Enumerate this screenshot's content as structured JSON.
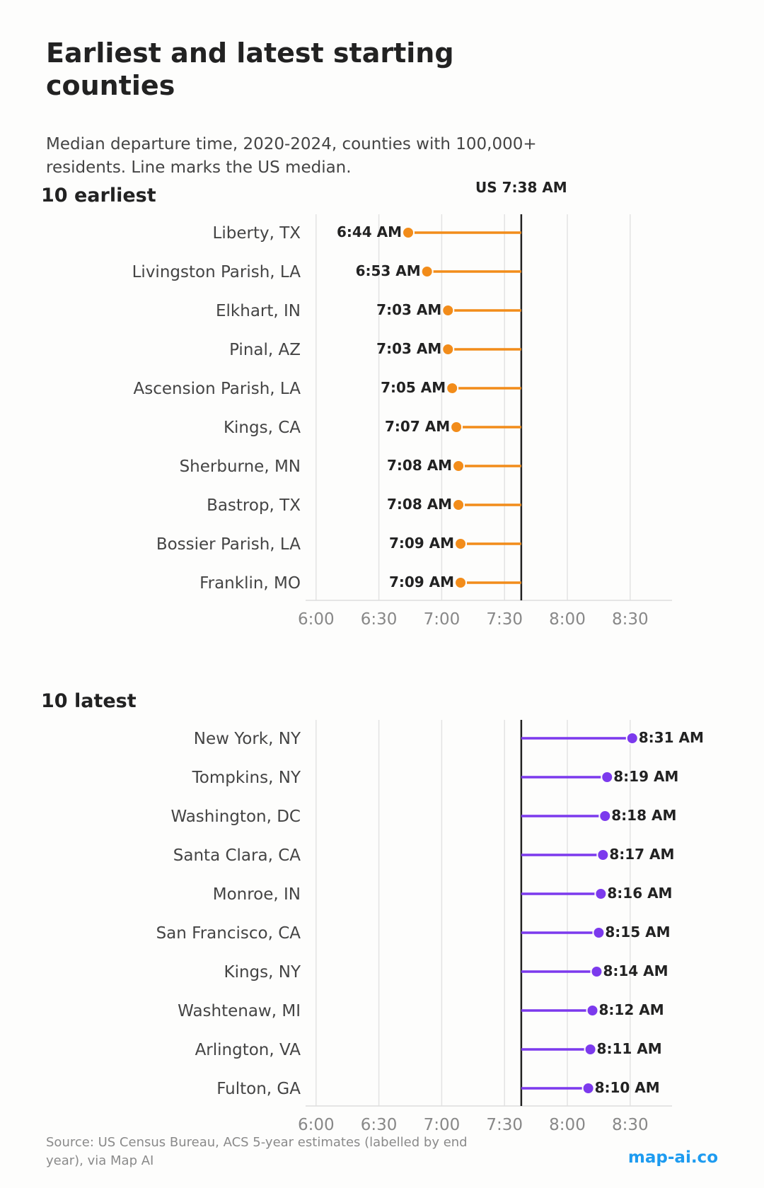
{
  "title": "Earliest and latest starting counties",
  "subtitle": "Median departure time, 2020-2024, counties with 100,000+ residents. Line marks the US median.",
  "source": "Source: US Census Bureau, ACS 5-year estimates (labelled by end year), via Map AI",
  "brand": "map-ai.co",
  "colors": {
    "earliest": "#f28c1a",
    "latest": "#7c3aed",
    "reference": "#222222",
    "brand": "#1d9bf0"
  },
  "chart_data": [
    {
      "type": "lollipop",
      "title": "10 earliest",
      "reference": {
        "value": "7:38",
        "label": "US 7:38 AM"
      },
      "xticks": [
        "6:00",
        "6:30",
        "7:00",
        "7:30",
        "8:00",
        "8:30"
      ],
      "xlim": [
        "5:55",
        "8:50"
      ],
      "grid": true,
      "categories": [
        "Liberty, TX",
        "Livingston Parish, LA",
        "Elkhart, IN",
        "Pinal, AZ",
        "Ascension Parish, LA",
        "Kings, CA",
        "Sherburne, MN",
        "Bastrop, TX",
        "Bossier Parish, LA",
        "Franklin, MO"
      ],
      "values": [
        "6:44",
        "6:53",
        "7:03",
        "7:03",
        "7:05",
        "7:07",
        "7:08",
        "7:08",
        "7:09",
        "7:09"
      ],
      "labels": [
        "6:44 AM",
        "6:53 AM",
        "7:03 AM",
        "7:03 AM",
        "7:05 AM",
        "7:07 AM",
        "7:08 AM",
        "7:08 AM",
        "7:09 AM",
        "7:09 AM"
      ],
      "color": "#f28c1a"
    },
    {
      "type": "lollipop",
      "title": "10 latest",
      "reference": {
        "value": "7:38"
      },
      "xticks": [
        "6:00",
        "6:30",
        "7:00",
        "7:30",
        "8:00",
        "8:30"
      ],
      "xlim": [
        "5:55",
        "8:50"
      ],
      "grid": true,
      "categories": [
        "New York, NY",
        "Tompkins, NY",
        "Washington, DC",
        "Santa Clara, CA",
        "Monroe, IN",
        "San Francisco, CA",
        "Kings, NY",
        "Washtenaw, MI",
        "Arlington, VA",
        "Fulton, GA"
      ],
      "values": [
        "8:31",
        "8:19",
        "8:18",
        "8:17",
        "8:16",
        "8:15",
        "8:14",
        "8:12",
        "8:11",
        "8:10"
      ],
      "labels": [
        "8:31 AM",
        "8:19 AM",
        "8:18 AM",
        "8:17 AM",
        "8:16 AM",
        "8:15 AM",
        "8:14 AM",
        "8:12 AM",
        "8:11 AM",
        "8:10 AM"
      ],
      "color": "#7c3aed"
    }
  ]
}
